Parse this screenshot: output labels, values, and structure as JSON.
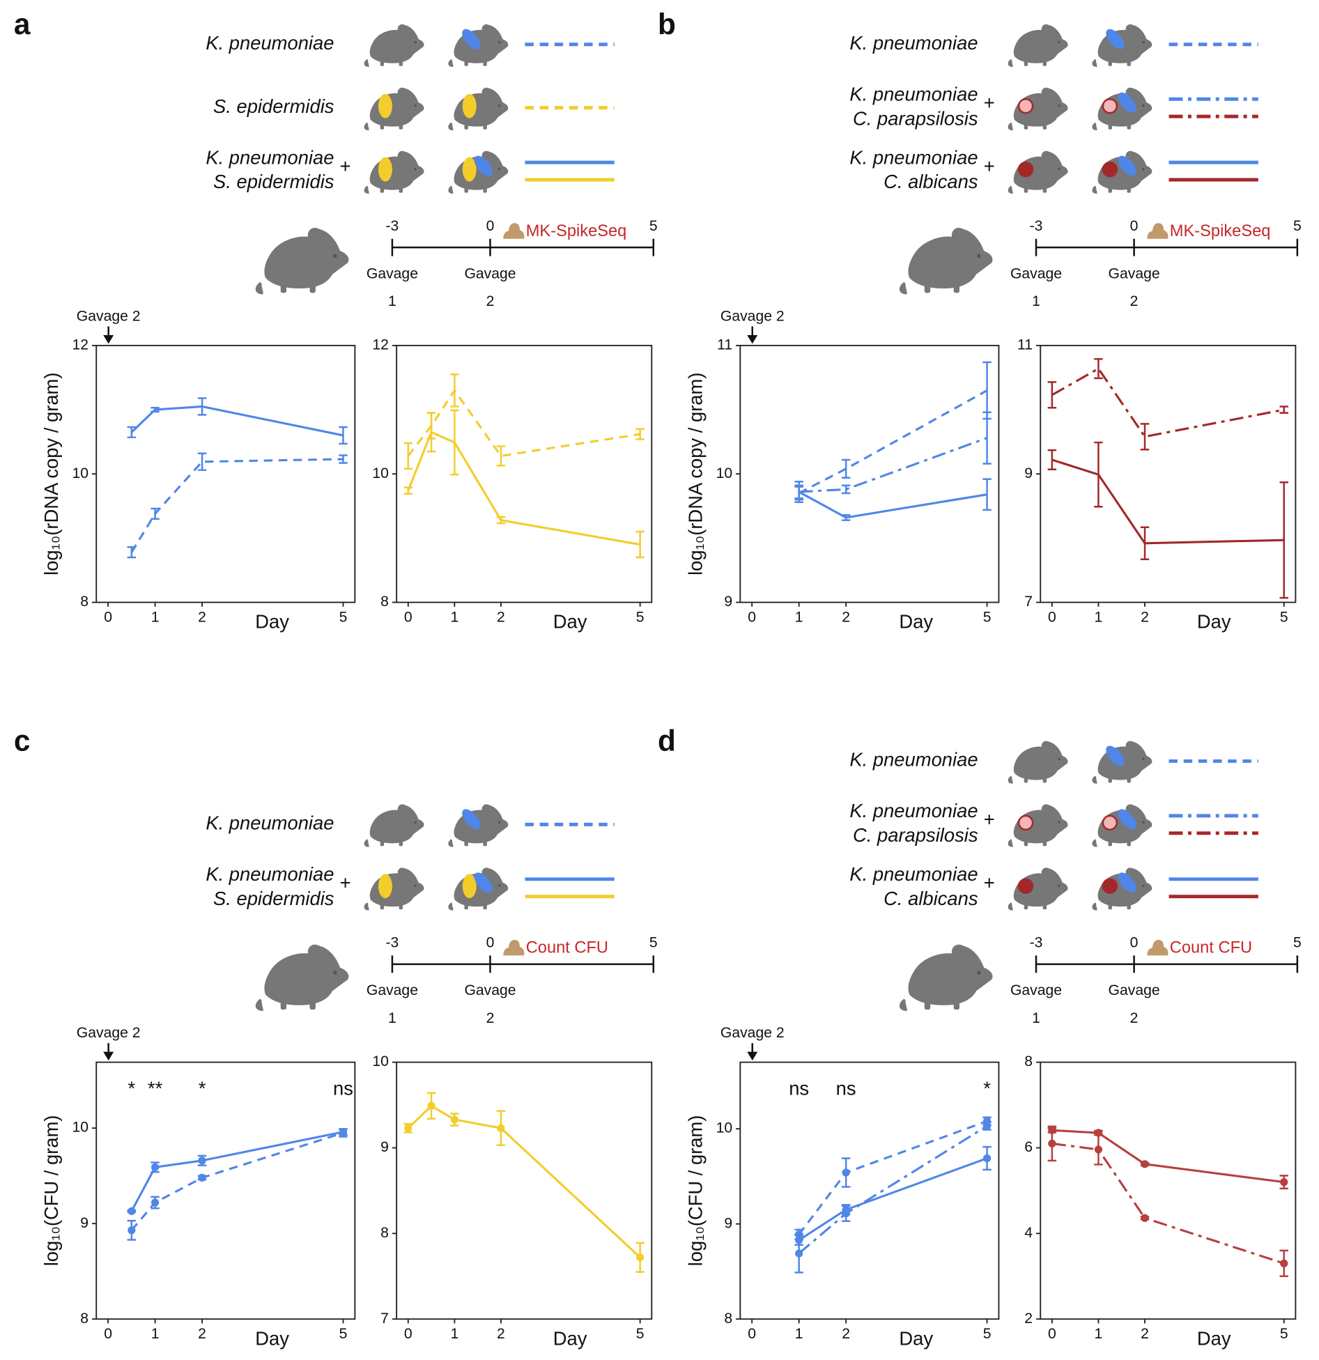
{
  "chart_data": [
    {
      "type": "line",
      "xlim": [
        -0.25,
        5.25
      ],
      "ylim": [
        8,
        12
      ],
      "xticks": [
        0,
        1,
        2,
        5
      ],
      "yticks": [
        8,
        10,
        12
      ],
      "xlabel": "Day",
      "ylabel": "log₁₀(rDNA copy / gram)",
      "series": [
        {
          "color": "#4f86e8",
          "style": "solid",
          "x": [
            0.5,
            1,
            2,
            5
          ],
          "values": [
            10.65,
            11.0,
            11.05,
            10.6
          ],
          "errors": [
            0.08,
            0.03,
            0.13,
            0.13
          ]
        },
        {
          "color": "#4f86e8",
          "style": "dashed",
          "x": [
            0.5,
            1,
            2,
            5
          ],
          "values": [
            8.78,
            9.38,
            10.19,
            10.23
          ],
          "errors": [
            0.08,
            0.08,
            0.13,
            0.06
          ]
        }
      ]
    },
    {
      "type": "line",
      "xlim": [
        -0.25,
        5.25
      ],
      "ylim": [
        8,
        12
      ],
      "xticks": [
        0,
        1,
        2,
        5
      ],
      "yticks": [
        8,
        10,
        12
      ],
      "xlabel": "Day",
      "series": [
        {
          "color": "#f2cd2c",
          "style": "dashed",
          "x": [
            0,
            0.5,
            1,
            2,
            5
          ],
          "values": [
            10.28,
            10.75,
            11.3,
            10.28,
            10.62
          ],
          "errors": [
            0.2,
            0.2,
            0.25,
            0.15,
            0.08
          ]
        },
        {
          "color": "#f2cd2c",
          "style": "solid",
          "x": [
            0,
            0.5,
            1,
            2,
            5
          ],
          "values": [
            9.74,
            10.65,
            10.49,
            9.28,
            8.9
          ],
          "errors": [
            0.05,
            0.3,
            0.5,
            0.05,
            0.2
          ]
        }
      ]
    },
    {
      "type": "line",
      "xlim": [
        -0.25,
        5.25
      ],
      "ylim": [
        9,
        11
      ],
      "xticks": [
        0,
        1,
        2,
        5
      ],
      "yticks": [
        9,
        10,
        11
      ],
      "xlabel": "Day",
      "ylabel": "log₁₀(rDNA copy / gram)",
      "series": [
        {
          "color": "#4f86e8",
          "style": "solid",
          "x": [
            1,
            2,
            5
          ],
          "values": [
            9.86,
            9.66,
            9.84
          ],
          "errors": [
            0.08,
            0.02,
            0.12
          ]
        },
        {
          "color": "#4f86e8",
          "style": "dashed",
          "x": [
            1,
            2,
            5
          ],
          "values": [
            9.85,
            10.04,
            10.65
          ],
          "errors": [
            0.05,
            0.07,
            0.22
          ]
        },
        {
          "color": "#4f86e8",
          "style": "dashdot",
          "x": [
            1,
            2,
            5
          ],
          "values": [
            9.86,
            9.88,
            10.28
          ],
          "errors": [
            0.05,
            0.03,
            0.2
          ]
        }
      ]
    },
    {
      "type": "line",
      "xlim": [
        -0.25,
        5.25
      ],
      "ylim": [
        7,
        11
      ],
      "xticks": [
        0,
        1,
        2,
        5
      ],
      "yticks": [
        7,
        9,
        11
      ],
      "xlabel": "Day",
      "series": [
        {
          "color": "#a3282a",
          "style": "dashdot",
          "x": [
            0,
            1,
            2,
            5
          ],
          "values": [
            10.23,
            10.64,
            9.58,
            10.0
          ],
          "errors": [
            0.2,
            0.15,
            0.2,
            0.05
          ]
        },
        {
          "color": "#a3282a",
          "style": "solid",
          "x": [
            0,
            1,
            2,
            5
          ],
          "values": [
            9.22,
            8.99,
            7.92,
            7.97
          ],
          "errors": [
            0.15,
            0.5,
            0.25,
            0.9
          ]
        }
      ]
    },
    {
      "type": "line",
      "xlim": [
        -0.25,
        5.25
      ],
      "ylim": [
        8,
        10.69
      ],
      "xticks": [
        0,
        1,
        2,
        5
      ],
      "yticks": [
        8,
        9,
        10
      ],
      "xlabel": "Day",
      "ylabel": "log₁₀(CFU / gram)",
      "annotations": [
        {
          "x": 0.5,
          "text": "*"
        },
        {
          "x": 1,
          "text": "**"
        },
        {
          "x": 2,
          "text": "*"
        },
        {
          "x": 5,
          "text": "ns"
        }
      ],
      "series": [
        {
          "color": "#4f86e8",
          "style": "solid",
          "marker": "circle",
          "x": [
            0.5,
            1,
            2,
            5
          ],
          "values": [
            9.13,
            9.59,
            9.66,
            9.96
          ],
          "errors": [
            0.01,
            0.05,
            0.05,
            0.03
          ]
        },
        {
          "color": "#4f86e8",
          "style": "dashed",
          "marker": "circle",
          "x": [
            0.5,
            1,
            2,
            5
          ],
          "values": [
            8.93,
            9.22,
            9.48,
            9.95
          ],
          "errors": [
            0.1,
            0.06,
            0.02,
            0.04
          ]
        }
      ]
    },
    {
      "type": "line",
      "xlim": [
        -0.25,
        5.25
      ],
      "ylim": [
        7,
        10
      ],
      "xticks": [
        0,
        1,
        2,
        5
      ],
      "yticks": [
        7,
        8,
        9,
        10
      ],
      "xlabel": "Day",
      "series": [
        {
          "color": "#f2cd2c",
          "style": "solid",
          "marker": "circle",
          "x": [
            0,
            0.5,
            1,
            2,
            5
          ],
          "values": [
            9.23,
            9.49,
            9.33,
            9.23,
            7.72
          ],
          "errors": [
            0.05,
            0.15,
            0.07,
            0.2,
            0.17
          ]
        }
      ]
    },
    {
      "type": "line",
      "xlim": [
        -0.25,
        5.25
      ],
      "ylim": [
        8,
        10.7
      ],
      "xticks": [
        0,
        1,
        2,
        5
      ],
      "yticks": [
        8,
        9,
        10
      ],
      "xlabel": "Day",
      "ylabel": "log₁₀(CFU / gram)",
      "annotations": [
        {
          "x": 1,
          "text": "ns"
        },
        {
          "x": 2,
          "text": "ns"
        },
        {
          "x": 5,
          "text": "*"
        }
      ],
      "series": [
        {
          "color": "#4f86e8",
          "style": "dashed",
          "marker": "circle",
          "x": [
            1,
            2,
            5
          ],
          "values": [
            8.89,
            9.54,
            10.08
          ],
          "errors": [
            0.05,
            0.15,
            0.04
          ]
        },
        {
          "color": "#4f86e8",
          "style": "dashdot",
          "marker": "circle",
          "x": [
            1,
            2,
            5
          ],
          "values": [
            8.69,
            9.11,
            10.03
          ],
          "errors": [
            0.2,
            0.08,
            0.04
          ]
        },
        {
          "color": "#4f86e8",
          "style": "solid",
          "marker": "circle",
          "x": [
            1,
            2,
            5
          ],
          "values": [
            8.83,
            9.15,
            9.69
          ],
          "errors": [
            0.05,
            0.05,
            0.12
          ]
        }
      ]
    },
    {
      "type": "line",
      "xlim": [
        -0.25,
        5.25
      ],
      "ylim": [
        2,
        8
      ],
      "xticks": [
        0,
        1,
        2,
        5
      ],
      "yticks": [
        2,
        4,
        6,
        8
      ],
      "xlabel": "Day",
      "series": [
        {
          "color": "#b5403f",
          "style": "solid",
          "marker": "circle",
          "x": [
            0,
            1,
            2,
            5
          ],
          "values": [
            6.41,
            6.35,
            5.62,
            5.2
          ],
          "errors": [
            0.05,
            0.05,
            0.03,
            0.15
          ]
        },
        {
          "color": "#b5403f",
          "style": "dashdot",
          "marker": "circle",
          "x": [
            0,
            1,
            2,
            5
          ],
          "values": [
            6.1,
            5.96,
            4.36,
            3.3
          ],
          "errors": [
            0.4,
            0.35,
            0.03,
            0.3
          ]
        }
      ]
    }
  ],
  "panels": [
    {
      "letter": "a",
      "legend": [
        {
          "label": [
            "K. pneumoniae"
          ],
          "lines": [
            {
              "color": "#4f86e8",
              "style": "dashed"
            }
          ]
        },
        {
          "label": [
            "S. epidermidis"
          ],
          "lines": [
            {
              "color": "#f2cd2c",
              "style": "dashed"
            }
          ]
        },
        {
          "label": [
            "K. pneumoniae",
            "S. epidermidis"
          ],
          "joiner": "+",
          "lines": [
            {
              "color": "#4f86e8",
              "style": "solid"
            },
            {
              "color": "#f2cd2c",
              "style": "solid"
            }
          ]
        }
      ],
      "timeline": {
        "ticks": [
          -3,
          0,
          5
        ],
        "gavages": [
          {
            "label": "Gavage",
            "number": 1
          },
          {
            "label": "Gavage",
            "number": 2
          }
        ],
        "method": "MK-SpikeSeq"
      },
      "arrow_label": "Gavage 2"
    },
    {
      "letter": "b",
      "legend": [
        {
          "label": [
            "K. pneumoniae"
          ],
          "lines": [
            {
              "color": "#4f86e8",
              "style": "dashed"
            }
          ]
        },
        {
          "label": [
            "K. pneumoniae",
            "C. parapsilosis"
          ],
          "joiner": "+",
          "lines": [
            {
              "color": "#4f86e8",
              "style": "dashdot"
            },
            {
              "color": "#a3282a",
              "style": "dashdot"
            }
          ]
        },
        {
          "label": [
            "K. pneumoniae",
            "C. albicans"
          ],
          "joiner": "+",
          "lines": [
            {
              "color": "#4f86e8",
              "style": "solid"
            },
            {
              "color": "#a3282a",
              "style": "solid"
            }
          ]
        }
      ],
      "timeline": {
        "ticks": [
          -3,
          0,
          5
        ],
        "gavages": [
          {
            "label": "Gavage",
            "number": 1
          },
          {
            "label": "Gavage",
            "number": 2
          }
        ],
        "method": "MK-SpikeSeq"
      },
      "arrow_label": "Gavage 2"
    },
    {
      "letter": "c",
      "legend": [
        {
          "label": [
            "K. pneumoniae"
          ],
          "lines": [
            {
              "color": "#4f86e8",
              "style": "dashed"
            }
          ]
        },
        {
          "label": [
            "K. pneumoniae",
            "S. epidermidis"
          ],
          "joiner": "+",
          "lines": [
            {
              "color": "#4f86e8",
              "style": "solid"
            },
            {
              "color": "#f2cd2c",
              "style": "solid"
            }
          ]
        }
      ],
      "timeline": {
        "ticks": [
          -3,
          0,
          5
        ],
        "gavages": [
          {
            "label": "Gavage",
            "number": 1
          },
          {
            "label": "Gavage",
            "number": 2
          }
        ],
        "method": "Count CFU"
      },
      "arrow_label": "Gavage 2"
    },
    {
      "letter": "d",
      "legend": [
        {
          "label": [
            "K. pneumoniae"
          ],
          "lines": [
            {
              "color": "#4f86e8",
              "style": "dashed"
            }
          ]
        },
        {
          "label": [
            "K. pneumoniae",
            "C. parapsilosis"
          ],
          "joiner": "+",
          "lines": [
            {
              "color": "#4f86e8",
              "style": "dashdot"
            },
            {
              "color": "#a3282a",
              "style": "dashdot"
            }
          ]
        },
        {
          "label": [
            "K. pneumoniae",
            "C. albicans"
          ],
          "joiner": "+",
          "lines": [
            {
              "color": "#4f86e8",
              "style": "solid"
            },
            {
              "color": "#a3282a",
              "style": "solid"
            }
          ]
        }
      ],
      "timeline": {
        "ticks": [
          -3,
          0,
          5
        ],
        "gavages": [
          {
            "label": "Gavage",
            "number": 1
          },
          {
            "label": "Gavage",
            "number": 2
          }
        ],
        "method": "Count CFU"
      },
      "arrow_label": "Gavage 2"
    }
  ]
}
